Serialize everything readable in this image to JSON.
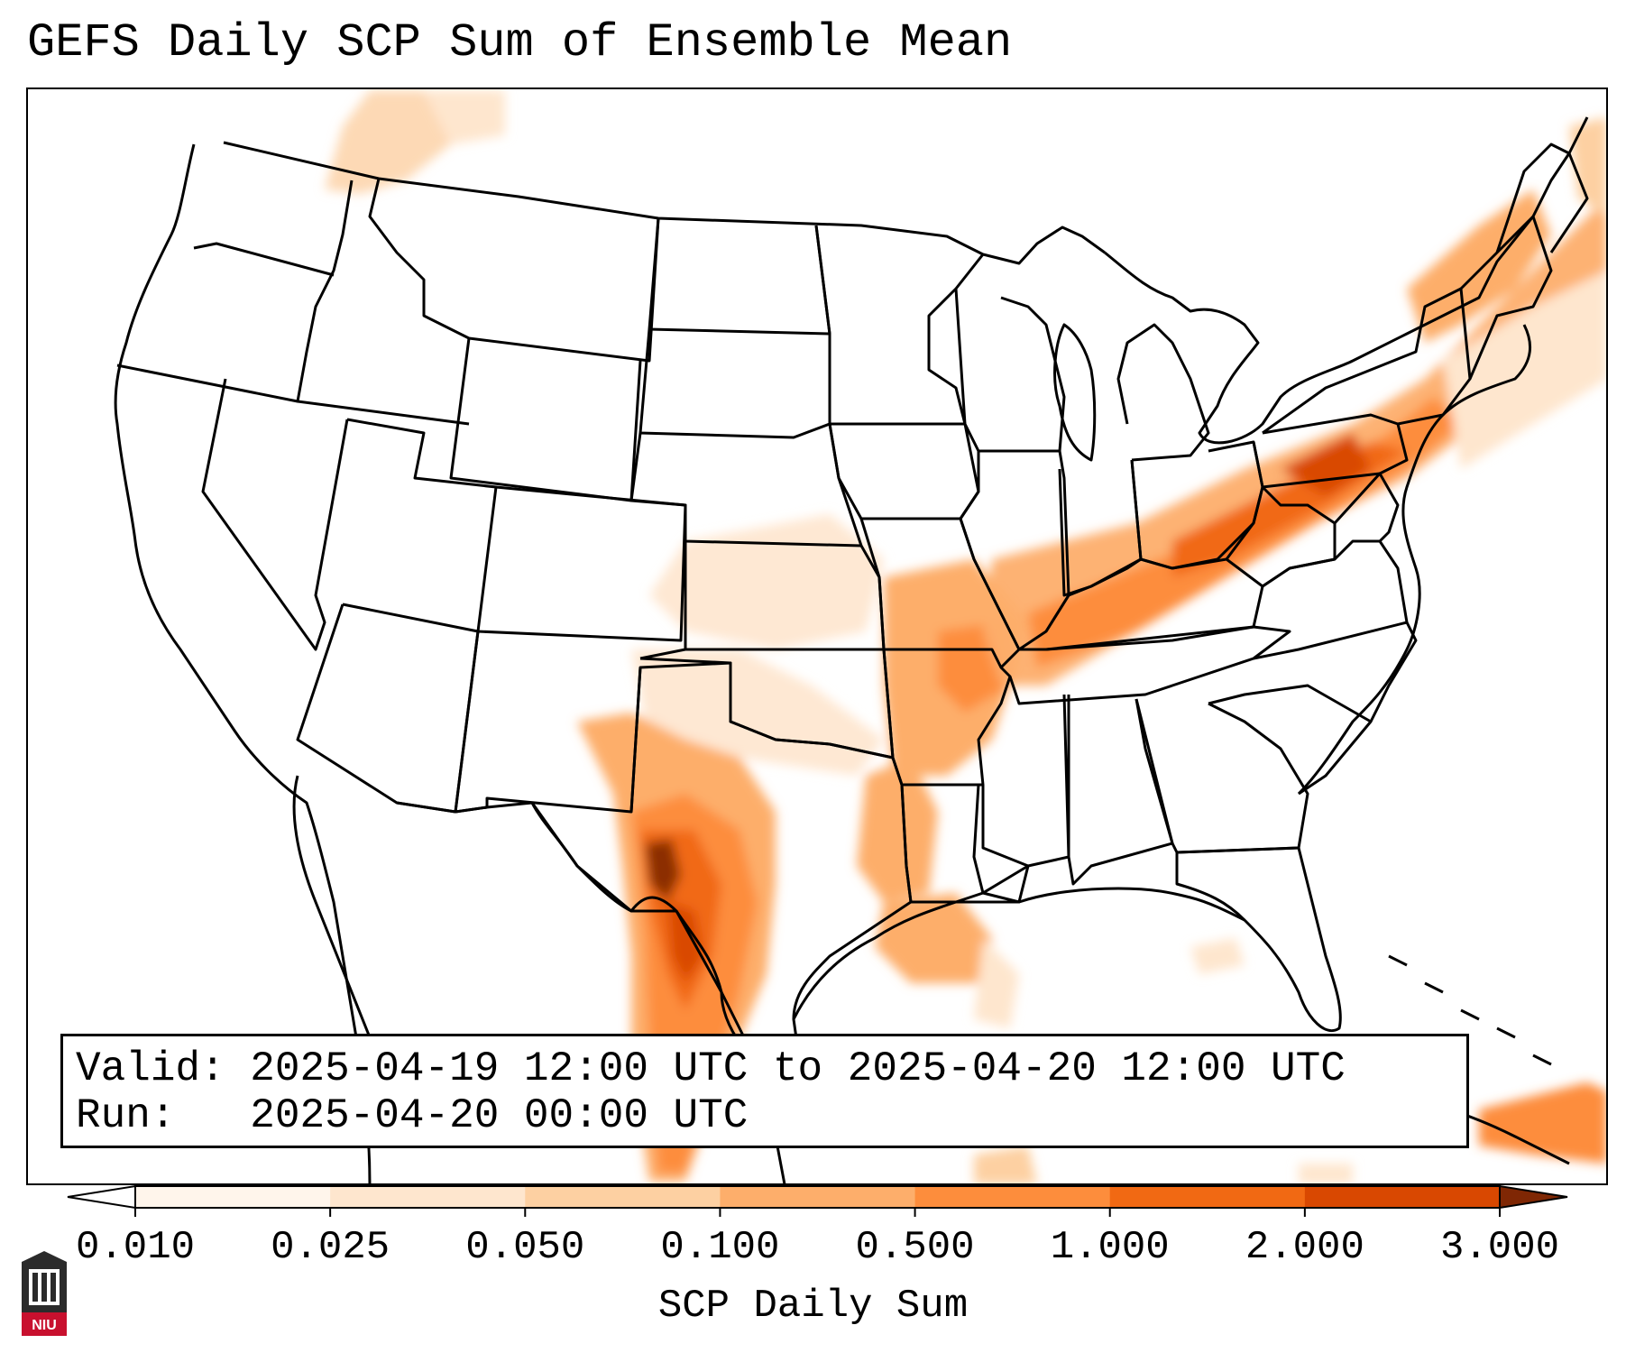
{
  "title": "GEFS Daily SCP Sum of Ensemble Mean",
  "valid": {
    "label": "Valid:",
    "text": "2025-04-19 12:00 UTC to 2025-04-20 12:00 UTC"
  },
  "run": {
    "label": "Run:",
    "text": "2025-04-20 00:00 UTC"
  },
  "colorbar": {
    "label": "SCP Daily Sum",
    "ticks": [
      "0.010",
      "0.025",
      "0.050",
      "0.100",
      "0.500",
      "1.000",
      "2.000",
      "3.000"
    ],
    "colors": [
      "#fff5eb",
      "#fee6ce",
      "#fdd0a2",
      "#fdae6b",
      "#fd8d3c",
      "#f16913",
      "#d94801",
      "#8c2d04"
    ],
    "under_color": "#ffffff",
    "over_color": "#7f2704"
  },
  "logo": {
    "text": "NIU",
    "color": "#c8102e"
  },
  "map": {
    "domain": "Continental United States",
    "highlights": [
      {
        "region": "Ohio Valley to Northeast corridor",
        "level": "1.000"
      },
      {
        "region": "Mid-South (Arkansas, Tennessee, Kentucky)",
        "level": "0.500"
      },
      {
        "region": "West Texas / Rio Grande",
        "level": "2.000"
      },
      {
        "region": "Central Plains",
        "level": "0.050"
      },
      {
        "region": "Pacific Northwest",
        "level": "0.100"
      },
      {
        "region": "Gulf Coast",
        "level": "0.500"
      }
    ]
  }
}
